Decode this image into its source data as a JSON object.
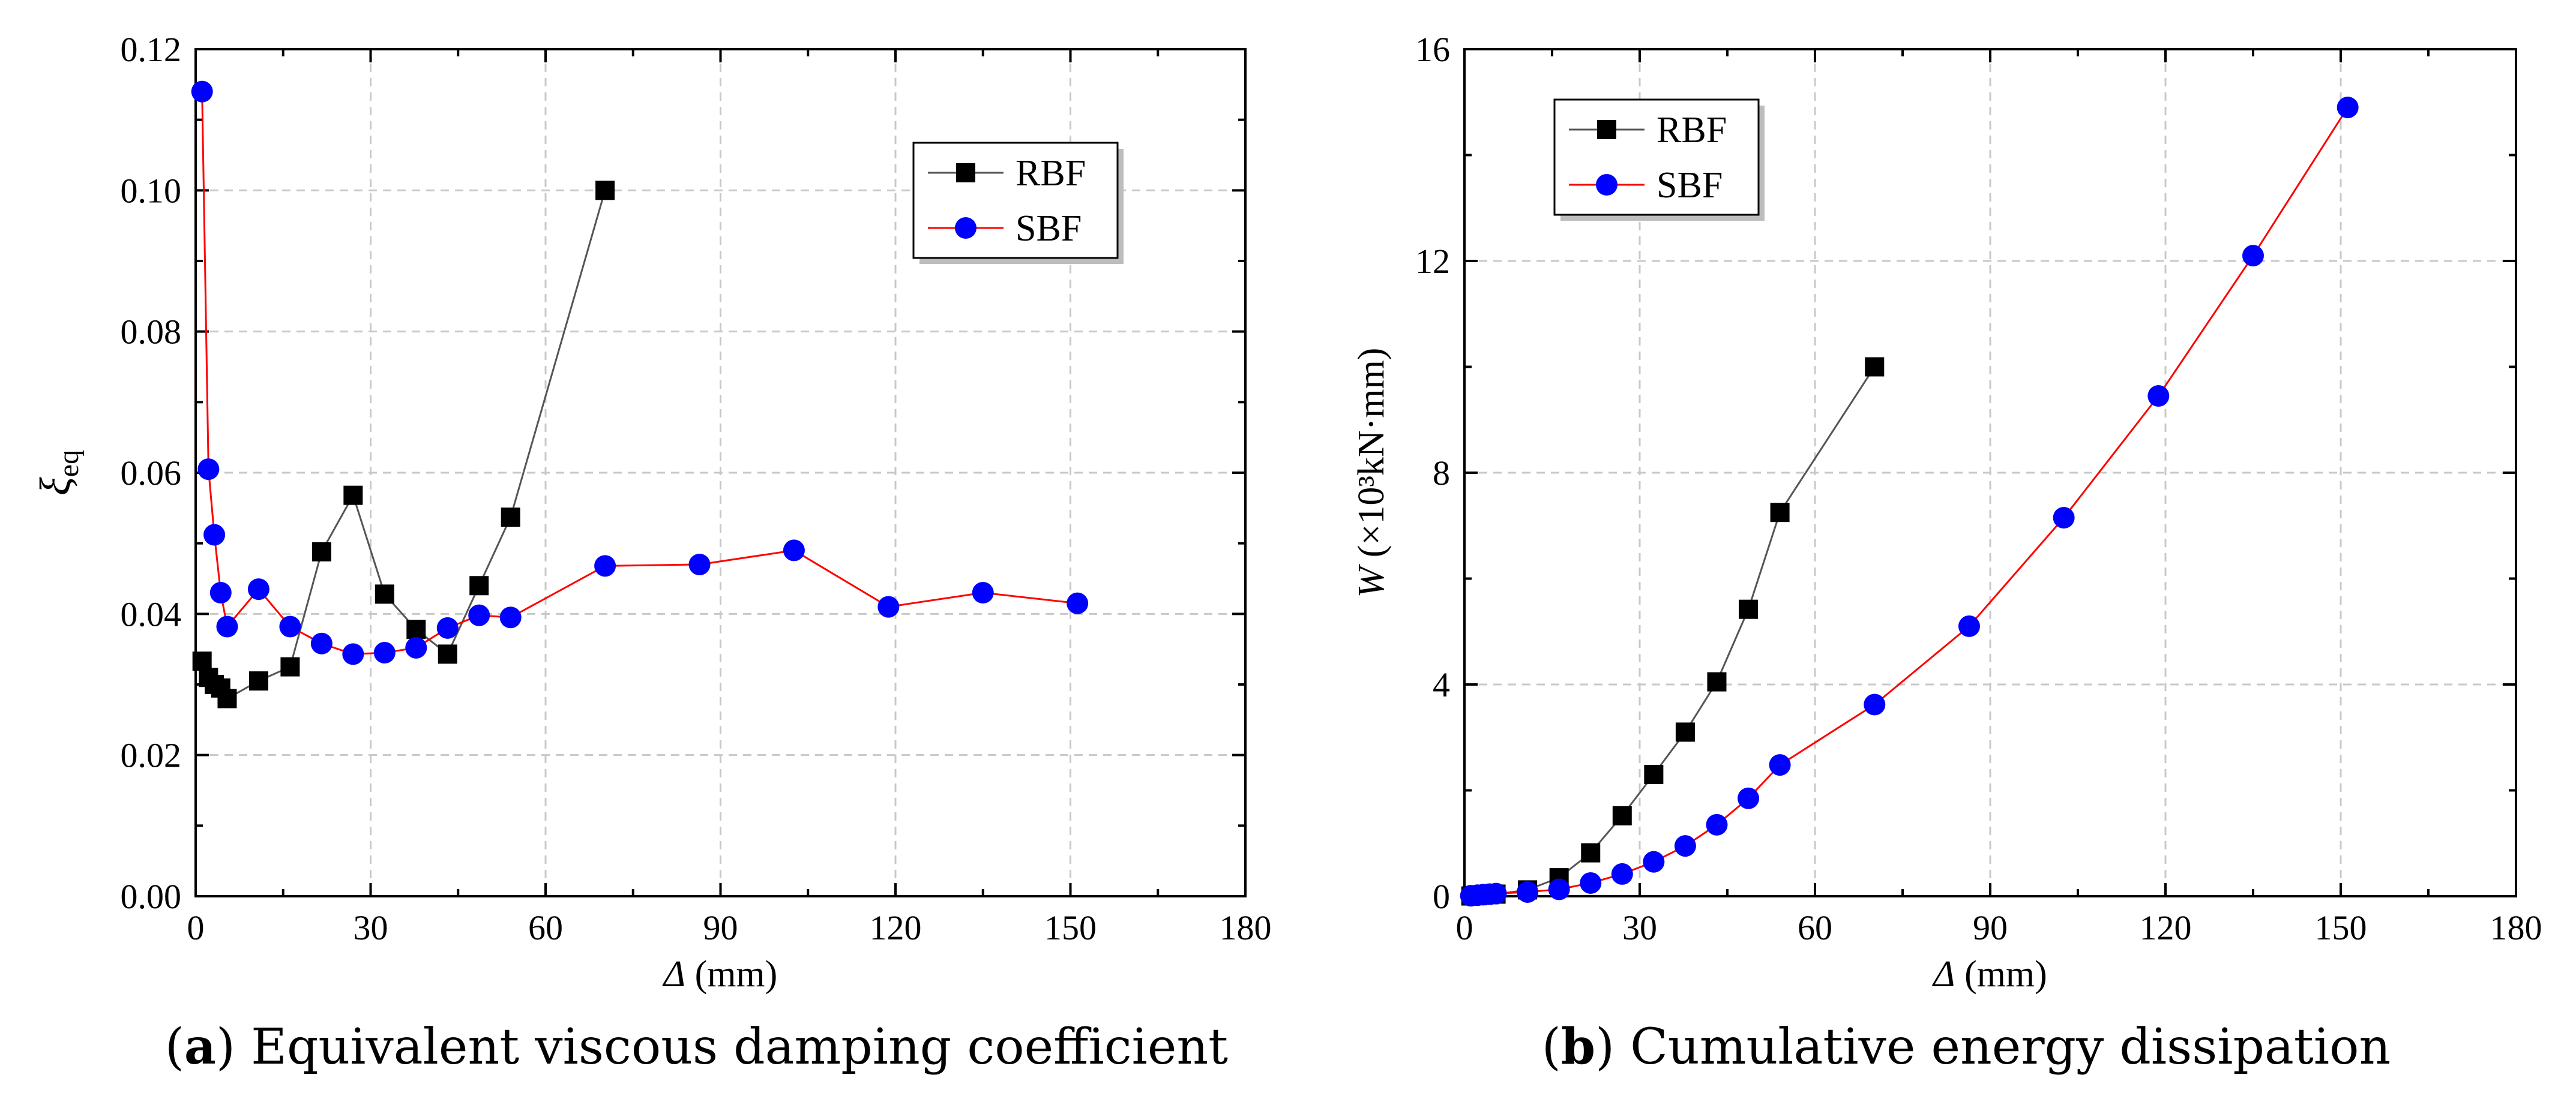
{
  "colors": {
    "rbf": "#000000",
    "sbf": "#0000ff",
    "sbf_line": "#ff0000",
    "rbf_line": "#555555"
  },
  "chart_data": [
    {
      "type": "line",
      "xlabel": "Δ (mm)",
      "ylabel": "ξeq",
      "xlim": [
        0,
        180
      ],
      "ylim": [
        0,
        0.12
      ],
      "xticks": [
        "0",
        "30",
        "60",
        "90",
        "120",
        "150",
        "180"
      ],
      "yticks": [
        "0.00",
        "0.02",
        "0.04",
        "0.06",
        "0.08",
        "0.10",
        "0.12"
      ],
      "grid": true,
      "legend": "top-right",
      "caption_letter": "a",
      "caption_text": " Equivalent viscous damping coefficient",
      "series": [
        {
          "name": "RBF",
          "marker": "square",
          "x": [
            1.1,
            2.2,
            3.2,
            4.3,
            5.4,
            10.8,
            16.2,
            21.6,
            27.0,
            32.4,
            37.8,
            43.2,
            48.6,
            54.0,
            70.2
          ],
          "y": [
            0.0333,
            0.031,
            0.03,
            0.0295,
            0.028,
            0.0305,
            0.0325,
            0.0488,
            0.0568,
            0.0428,
            0.0378,
            0.0343,
            0.044,
            0.0537,
            0.1
          ]
        },
        {
          "name": "SBF",
          "marker": "circle",
          "x": [
            1.1,
            2.2,
            3.2,
            4.3,
            5.4,
            10.8,
            16.2,
            21.6,
            27.0,
            32.4,
            37.8,
            43.2,
            48.6,
            54.0,
            70.2,
            86.4,
            102.6,
            118.8,
            135.0,
            151.2
          ],
          "y": [
            0.114,
            0.0605,
            0.0512,
            0.043,
            0.0382,
            0.0435,
            0.0382,
            0.0358,
            0.0343,
            0.0345,
            0.0352,
            0.038,
            0.0398,
            0.0395,
            0.0468,
            0.047,
            0.049,
            0.041,
            0.043,
            0.0415
          ]
        }
      ]
    },
    {
      "type": "line",
      "xlabel": "Δ (mm)",
      "ylabel": "W (×10³kN·mm)",
      "xlim": [
        0,
        180
      ],
      "ylim": [
        0,
        16
      ],
      "xticks": [
        "0",
        "30",
        "60",
        "90",
        "120",
        "150",
        "180"
      ],
      "yticks": [
        "0",
        "4",
        "8",
        "12",
        "16"
      ],
      "grid": true,
      "legend": "top-left",
      "caption_letter": "b",
      "caption_text": " Cumulative energy dissipation",
      "series": [
        {
          "name": "RBF",
          "marker": "square",
          "x": [
            1.1,
            2.2,
            3.2,
            4.3,
            5.4,
            10.8,
            16.2,
            21.6,
            27.0,
            32.4,
            37.8,
            43.2,
            48.6,
            54.0,
            70.2
          ],
          "y": [
            0.005,
            0.01,
            0.02,
            0.03,
            0.04,
            0.12,
            0.35,
            0.82,
            1.52,
            2.3,
            3.1,
            4.05,
            5.42,
            7.25,
            10.0
          ]
        },
        {
          "name": "SBF",
          "marker": "circle",
          "x": [
            1.1,
            2.2,
            3.2,
            4.3,
            5.4,
            10.8,
            16.2,
            21.6,
            27.0,
            32.4,
            37.8,
            43.2,
            48.6,
            54.0,
            70.2,
            86.4,
            102.6,
            118.8,
            135.0,
            151.2
          ],
          "y": [
            0.01,
            0.02,
            0.03,
            0.04,
            0.05,
            0.08,
            0.13,
            0.25,
            0.42,
            0.65,
            0.95,
            1.35,
            1.85,
            2.48,
            3.62,
            5.1,
            7.15,
            9.45,
            12.1,
            14.9
          ]
        }
      ]
    }
  ]
}
